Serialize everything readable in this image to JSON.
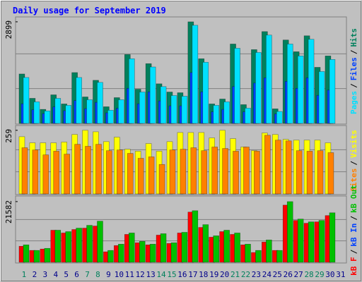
{
  "chart_data": [
    {
      "type": "bar",
      "title": "Daily usage for September 2019",
      "ylim": [
        0,
        2978
      ],
      "yticks": [
        2899
      ],
      "legend_separator": "/",
      "draw_order": [
        2,
        1,
        0
      ],
      "series": [
        {
          "name": "Pages",
          "color": "#00e0ff",
          "values": [
            1310,
            615,
            355,
            715,
            515,
            1310,
            675,
            1170,
            375,
            675,
            1845,
            895,
            1610,
            1050,
            795,
            775,
            2800,
            1745,
            515,
            615,
            2145,
            435,
            2025,
            2520,
            340,
            2265,
            1925,
            2400,
            1480,
            1825,
            null
          ]
        },
        {
          "name": "Files",
          "color": "#0040ff",
          "values": [
            560,
            390,
            280,
            470,
            360,
            650,
            420,
            600,
            300,
            430,
            1000,
            560,
            900,
            640,
            500,
            500,
            1450,
            900,
            330,
            400,
            1050,
            330,
            1150,
            1300,
            270,
            1200,
            1000,
            1300,
            800,
            950,
            null
          ]
        },
        {
          "name": "Hits",
          "color": "#00805c",
          "values": [
            1410,
            715,
            400,
            815,
            555,
            1450,
            755,
            1230,
            475,
            735,
            1965,
            975,
            1705,
            1130,
            895,
            875,
            2899,
            1845,
            555,
            695,
            2265,
            535,
            2105,
            2620,
            415,
            2380,
            2045,
            2500,
            1600,
            1925,
            null
          ]
        }
      ]
    },
    {
      "type": "bar",
      "ylim": [
        0,
        270
      ],
      "yticks": [
        259
      ],
      "legend_separator": "/",
      "draw_order": [
        1,
        0
      ],
      "series": [
        {
          "name": "Sites",
          "color": "#ff8000",
          "values": [
            188,
            179,
            159,
            174,
            162,
            202,
            194,
            202,
            176,
            179,
            165,
            145,
            151,
            120,
            179,
            182,
            188,
            176,
            191,
            185,
            174,
            191,
            174,
            239,
            219,
            216,
            176,
            174,
            176,
            168,
            null
          ]
        },
        {
          "name": "Visits",
          "color": "#ffff00",
          "values": [
            233,
            208,
            208,
            208,
            211,
            242,
            259,
            253,
            213,
            231,
            182,
            174,
            205,
            174,
            213,
            250,
            250,
            250,
            228,
            259,
            225,
            191,
            176,
            248,
            242,
            222,
            219,
            219,
            219,
            208,
            null
          ]
        }
      ]
    },
    {
      "type": "bar",
      "ylim": [
        0,
        22822
      ],
      "yticks": [
        21582
      ],
      "legend_separator": "/",
      "draw_order": [
        0,
        1,
        2
      ],
      "categories": [
        "1",
        "2",
        "3",
        "4",
        "5",
        "6",
        "7",
        "8",
        "9",
        "10",
        "11",
        "12",
        "13",
        "14",
        "15",
        "16",
        "17",
        "18",
        "19",
        "20",
        "21",
        "22",
        "23",
        "24",
        "25",
        "26",
        "27",
        "28",
        "29",
        "30",
        "31"
      ],
      "category_colors": [
        "#00805c",
        "#00008b",
        "#00008b",
        "#00008b",
        "#00008b",
        "#00008b",
        "#00805c",
        "#00805c",
        "#00008b",
        "#00008b",
        "#00008b",
        "#00008b",
        "#00008b",
        "#00805c",
        "#00805c",
        "#00008b",
        "#00008b",
        "#00008b",
        "#00008b",
        "#00008b",
        "#00805c",
        "#00805c",
        "#00008b",
        "#00008b",
        "#00008b",
        "#00008b",
        "#00008b",
        "#00805c",
        "#00805c",
        "#00008b",
        "#00008b"
      ],
      "series": [
        {
          "name": "kB F",
          "color": "#ff0000",
          "values": [
            5700,
            4220,
            4710,
            11410,
            10420,
            11660,
            12150,
            12900,
            3720,
            5950,
            9920,
            6940,
            6200,
            9670,
            6700,
            10420,
            17860,
            12400,
            8930,
            10910,
            9920,
            6200,
            3470,
            7190,
            4220,
            20340,
            14880,
            13890,
            14380,
            16620,
            null
          ]
        },
        {
          "name": "kB In",
          "color": "#0040ff",
          "values": [
            null,
            null,
            null,
            null,
            null,
            null,
            null,
            null,
            null,
            null,
            null,
            null,
            null,
            null,
            null,
            null,
            null,
            null,
            null,
            null,
            null,
            null,
            null,
            null,
            null,
            null,
            null,
            null,
            null,
            null,
            null
          ]
        },
        {
          "name": "kB Out",
          "color": "#00c000",
          "values": [
            6200,
            4220,
            4960,
            11410,
            10910,
            12150,
            13140,
            14630,
            4220,
            6450,
            10420,
            7440,
            6450,
            10170,
            6940,
            10660,
            18350,
            13390,
            9420,
            11410,
            10420,
            6450,
            4220,
            7940,
            4220,
            21582,
            15370,
            14380,
            14880,
            17610,
            null
          ]
        }
      ]
    }
  ]
}
